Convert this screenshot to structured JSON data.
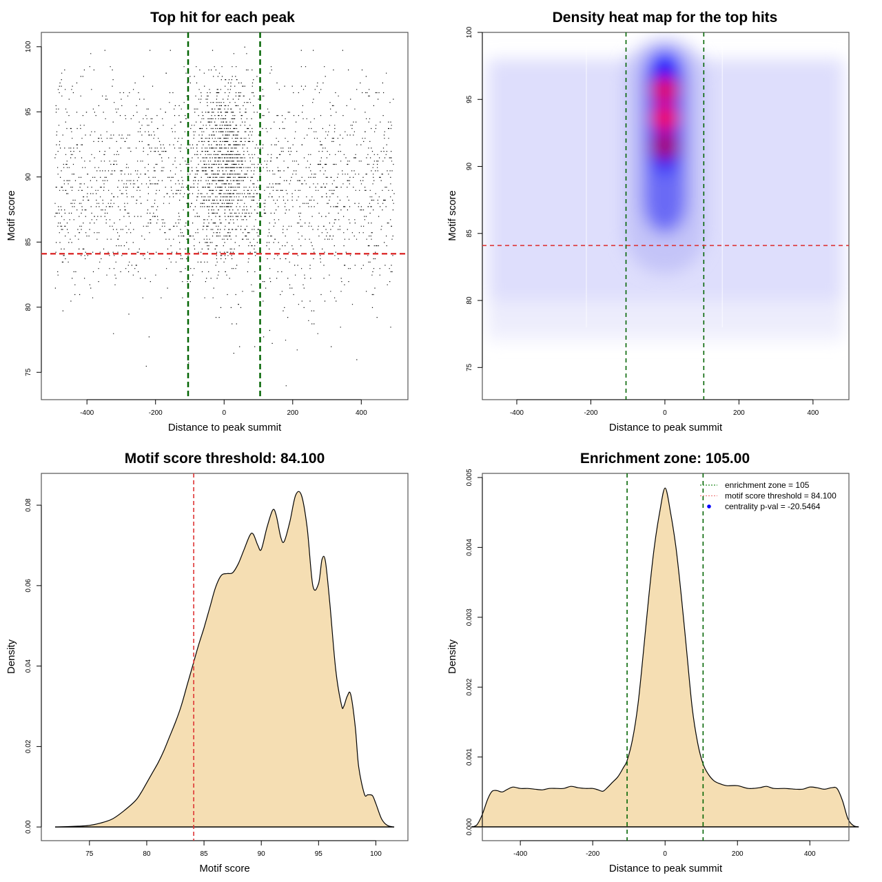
{
  "chart_data": [
    {
      "id": "scatter",
      "type": "scatter",
      "title": "Top hit for each peak",
      "xlabel": "Distance to peak summit",
      "ylabel": "Motif score",
      "xlim": [
        -533,
        536
      ],
      "ylim": [
        72.9,
        101.1
      ],
      "xticks": [
        -400,
        -200,
        0,
        200,
        400
      ],
      "xtick_labels": [
        "-400",
        "-200",
        "0",
        "200",
        "400"
      ],
      "yticks": [
        75,
        80,
        85,
        90,
        95,
        100
      ],
      "ytick_labels": [
        "75",
        "80",
        "85",
        "90",
        "95",
        "100"
      ],
      "grid": false,
      "point_color": "#000000",
      "x_range_of_points": [
        -495,
        495
      ],
      "approx_point_count": 15000,
      "central_enrichment": "dense cluster of points within roughly -100..100 at scores 85-98",
      "vlines": {
        "values": [
          -105,
          105
        ],
        "color": "#006400",
        "style": "dashed"
      },
      "hline": {
        "value": 84.1,
        "color": "#DD3333",
        "style": "dashed"
      }
    },
    {
      "id": "heatmap",
      "type": "heatmap",
      "title": "Density heat map for the top hits",
      "xlabel": "Distance to peak summit",
      "ylabel": "Motif score",
      "xlim": [
        -493,
        497
      ],
      "ylim": [
        72.6,
        100
      ],
      "xticks": [
        -400,
        -200,
        0,
        200,
        400
      ],
      "xtick_labels": [
        "-400",
        "-200",
        "0",
        "200",
        "400"
      ],
      "yticks": [
        75,
        80,
        85,
        90,
        95,
        100
      ],
      "ytick_labels": [
        "75",
        "80",
        "85",
        "90",
        "95",
        "100"
      ],
      "colormap": [
        "#FFFFFF",
        "#0000FF",
        "#FF0000"
      ],
      "hotspots": [
        {
          "x": 0,
          "y": 93.6,
          "intensity": 1.0
        },
        {
          "x": 0,
          "y": 95.7,
          "intensity": 0.85
        },
        {
          "x": 0,
          "y": 91.5,
          "intensity": 0.7
        },
        {
          "x": 0,
          "y": 97.5,
          "intensity": 0.5
        }
      ],
      "background_band": {
        "y_center": 88,
        "y_spread": 6,
        "intensity": 0.16
      },
      "vlines": {
        "values": [
          -105,
          105
        ],
        "color": "#006400",
        "style": "dashed"
      },
      "hline": {
        "value": 84.1,
        "color": "#DD3333",
        "style": "dashed"
      }
    },
    {
      "id": "score-density",
      "type": "area",
      "title": "Motif score threshold: 84.100",
      "xlabel": "Motif score",
      "ylabel": "Density",
      "xlim": [
        70.8,
        102.8
      ],
      "ylim": [
        -0.0034,
        0.0879
      ],
      "xticks": [
        75,
        80,
        85,
        90,
        95,
        100
      ],
      "xtick_labels": [
        "75",
        "80",
        "85",
        "90",
        "95",
        "100"
      ],
      "yticks": [
        0,
        0.02,
        0.04,
        0.06,
        0.08
      ],
      "ytick_labels": [
        "0.00",
        "0.02",
        "0.04",
        "0.06",
        "0.08"
      ],
      "fill_color": "#F5DEB3",
      "x": [
        72.0,
        74.0,
        75.0,
        76.0,
        77.0,
        78.0,
        79.0,
        79.5,
        80.0,
        80.5,
        81.0,
        81.5,
        82.0,
        82.5,
        83.0,
        83.5,
        84.0,
        84.5,
        85.0,
        85.5,
        86.0,
        86.5,
        87.0,
        87.5,
        88.0,
        88.5,
        89.0,
        89.3,
        89.7,
        90.0,
        90.5,
        91.0,
        91.3,
        91.7,
        92.0,
        92.5,
        93.0,
        93.5,
        94.0,
        94.5,
        95.0,
        95.3,
        95.6,
        96.0,
        96.5,
        97.0,
        97.2,
        97.5,
        97.8,
        98.2,
        98.5,
        99.0,
        99.3,
        99.7,
        100.0,
        100.5,
        101.0,
        101.6
      ],
      "y": [
        0.0,
        0.0002,
        0.0004,
        0.001,
        0.002,
        0.004,
        0.0065,
        0.0085,
        0.011,
        0.0135,
        0.016,
        0.019,
        0.0225,
        0.026,
        0.03,
        0.035,
        0.04,
        0.045,
        0.0495,
        0.0545,
        0.0595,
        0.0625,
        0.063,
        0.0632,
        0.0655,
        0.069,
        0.0725,
        0.0728,
        0.07,
        0.069,
        0.0745,
        0.0788,
        0.0775,
        0.072,
        0.071,
        0.076,
        0.0825,
        0.0825,
        0.0745,
        0.06,
        0.0605,
        0.0665,
        0.066,
        0.055,
        0.039,
        0.0303,
        0.03,
        0.0325,
        0.033,
        0.025,
        0.015,
        0.0082,
        0.008,
        0.0078,
        0.0058,
        0.002,
        0.0004,
        0.0
      ],
      "vline": {
        "value": 84.1,
        "color": "#DD3333",
        "style": "dashed"
      }
    },
    {
      "id": "position-density",
      "type": "area",
      "title": "Enrichment zone: 105.00",
      "xlabel": "Distance to peak summit",
      "ylabel": "Density",
      "xlim": [
        -505,
        508
      ],
      "ylim": [
        -0.000197,
        0.005059
      ],
      "xticks": [
        -400,
        -200,
        0,
        200,
        400
      ],
      "xtick_labels": [
        "-400",
        "-200",
        "0",
        "200",
        "400"
      ],
      "yticks": [
        0,
        0.001,
        0.002,
        0.003,
        0.004,
        0.005
      ],
      "ytick_labels": [
        "0.000",
        "0.001",
        "0.002",
        "0.003",
        "0.004",
        "0.005"
      ],
      "fill_color": "#F5DEB3",
      "x": [
        -535,
        -520,
        -505,
        -490,
        -478,
        -465,
        -450,
        -435,
        -420,
        -400,
        -380,
        -360,
        -340,
        -320,
        -300,
        -280,
        -260,
        -240,
        -220,
        -200,
        -185,
        -172,
        -160,
        -145,
        -130,
        -115,
        -105,
        -90,
        -75,
        -60,
        -45,
        -30,
        -15,
        0,
        15,
        30,
        45,
        60,
        75,
        90,
        105,
        120,
        135,
        150,
        170,
        200,
        230,
        260,
        280,
        300,
        330,
        360,
        380,
        400,
        420,
        440,
        460,
        475,
        490,
        505,
        520,
        535
      ],
      "y": [
        0.0,
        3e-05,
        0.00018,
        0.0004,
        0.00051,
        0.00052,
        0.0005,
        0.00054,
        0.00057,
        0.00055,
        0.00055,
        0.00054,
        0.00053,
        0.00055,
        0.00055,
        0.00055,
        0.00058,
        0.00056,
        0.00055,
        0.00055,
        0.00053,
        0.00051,
        0.00056,
        0.00064,
        0.00072,
        0.00085,
        0.00095,
        0.00125,
        0.00175,
        0.0025,
        0.0033,
        0.004,
        0.0045,
        0.00485,
        0.0045,
        0.004,
        0.0033,
        0.0025,
        0.0017,
        0.0012,
        0.0009,
        0.00075,
        0.00066,
        0.00062,
        0.00059,
        0.00059,
        0.00055,
        0.00056,
        0.00058,
        0.00055,
        0.00055,
        0.00054,
        0.00054,
        0.00057,
        0.00056,
        0.00054,
        0.00056,
        0.00055,
        0.00038,
        0.00012,
        2e-05,
        0.0
      ],
      "vlines": {
        "values": [
          -105,
          105
        ],
        "color": "#006400",
        "style": "dashed"
      },
      "legend": {
        "position": "top-right",
        "entries": [
          {
            "label": "enrichment zone = 105",
            "symbol": "dotted-line",
            "color": "#228B22"
          },
          {
            "label": "motif score threshold = 84.100",
            "symbol": "dotted-line",
            "color": "#F08080"
          },
          {
            "label": "centrality p-val = -20.5464",
            "symbol": "dot",
            "color": "#0000FF"
          }
        ]
      }
    }
  ]
}
